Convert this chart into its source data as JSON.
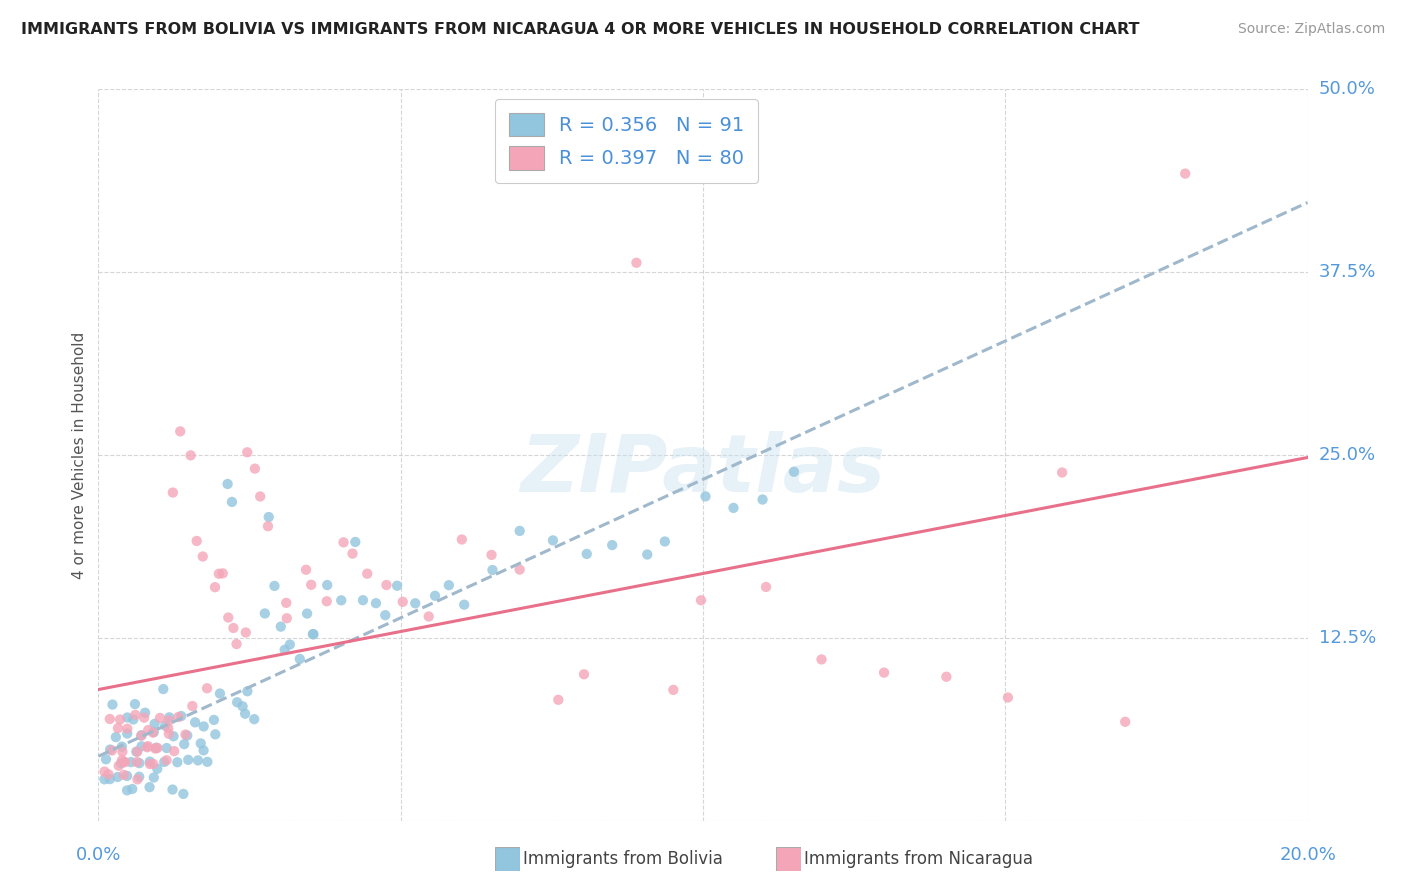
{
  "title": "IMMIGRANTS FROM BOLIVIA VS IMMIGRANTS FROM NICARAGUA 4 OR MORE VEHICLES IN HOUSEHOLD CORRELATION CHART",
  "source": "Source: ZipAtlas.com",
  "ylabel": "4 or more Vehicles in Household",
  "xlim": [
    0.0,
    0.2
  ],
  "ylim": [
    0.0,
    0.5
  ],
  "bolivia_R": 0.356,
  "bolivia_N": 91,
  "nicaragua_R": 0.397,
  "nicaragua_N": 80,
  "bolivia_color": "#92c5de",
  "nicaragua_color": "#f4a6b8",
  "bolivia_line_color": "#4a90d9",
  "nicaragua_line_color": "#e8708a",
  "dashed_line_color": "#a0b8cc",
  "legend_label_bolivia": "Immigrants from Bolivia",
  "legend_label_nicaragua": "Immigrants from Nicaragua",
  "bolivia_x": [
    0.001,
    0.002,
    0.002,
    0.003,
    0.003,
    0.004,
    0.004,
    0.005,
    0.005,
    0.006,
    0.006,
    0.007,
    0.007,
    0.007,
    0.008,
    0.008,
    0.009,
    0.009,
    0.01,
    0.01,
    0.01,
    0.011,
    0.011,
    0.012,
    0.012,
    0.013,
    0.013,
    0.014,
    0.014,
    0.015,
    0.015,
    0.016,
    0.016,
    0.017,
    0.017,
    0.018,
    0.019,
    0.019,
    0.02,
    0.02,
    0.021,
    0.022,
    0.023,
    0.024,
    0.025,
    0.025,
    0.026,
    0.027,
    0.028,
    0.03,
    0.03,
    0.031,
    0.032,
    0.033,
    0.034,
    0.035,
    0.036,
    0.038,
    0.04,
    0.042,
    0.044,
    0.046,
    0.048,
    0.05,
    0.052,
    0.055,
    0.058,
    0.06,
    0.065,
    0.07,
    0.075,
    0.08,
    0.085,
    0.09,
    0.095,
    0.1,
    0.105,
    0.11,
    0.115,
    0.001,
    0.002,
    0.003,
    0.004,
    0.005,
    0.006,
    0.007,
    0.008,
    0.009,
    0.01,
    0.012,
    0.014
  ],
  "bolivia_y": [
    0.04,
    0.05,
    0.08,
    0.04,
    0.06,
    0.05,
    0.07,
    0.04,
    0.06,
    0.05,
    0.07,
    0.04,
    0.06,
    0.08,
    0.05,
    0.07,
    0.04,
    0.06,
    0.05,
    0.07,
    0.09,
    0.04,
    0.06,
    0.05,
    0.07,
    0.04,
    0.06,
    0.05,
    0.07,
    0.04,
    0.06,
    0.05,
    0.07,
    0.04,
    0.06,
    0.05,
    0.07,
    0.04,
    0.06,
    0.09,
    0.23,
    0.22,
    0.08,
    0.08,
    0.07,
    0.09,
    0.07,
    0.14,
    0.21,
    0.16,
    0.13,
    0.12,
    0.12,
    0.11,
    0.14,
    0.13,
    0.13,
    0.16,
    0.15,
    0.19,
    0.15,
    0.15,
    0.14,
    0.16,
    0.15,
    0.15,
    0.16,
    0.15,
    0.17,
    0.2,
    0.19,
    0.18,
    0.19,
    0.18,
    0.19,
    0.22,
    0.21,
    0.22,
    0.24,
    0.03,
    0.03,
    0.03,
    0.02,
    0.03,
    0.02,
    0.03,
    0.02,
    0.03,
    0.03,
    0.02,
    0.02
  ],
  "nicaragua_x": [
    0.001,
    0.002,
    0.002,
    0.003,
    0.003,
    0.004,
    0.004,
    0.005,
    0.005,
    0.006,
    0.006,
    0.007,
    0.007,
    0.008,
    0.008,
    0.009,
    0.009,
    0.01,
    0.01,
    0.011,
    0.011,
    0.012,
    0.013,
    0.014,
    0.015,
    0.016,
    0.017,
    0.018,
    0.019,
    0.02,
    0.021,
    0.022,
    0.023,
    0.024,
    0.025,
    0.026,
    0.027,
    0.028,
    0.03,
    0.032,
    0.034,
    0.036,
    0.038,
    0.04,
    0.042,
    0.045,
    0.048,
    0.05,
    0.055,
    0.06,
    0.065,
    0.07,
    0.075,
    0.08,
    0.09,
    0.095,
    0.1,
    0.11,
    0.12,
    0.13,
    0.14,
    0.15,
    0.16,
    0.17,
    0.18,
    0.002,
    0.003,
    0.004,
    0.005,
    0.006,
    0.007,
    0.008,
    0.009,
    0.01,
    0.011,
    0.012,
    0.013,
    0.014,
    0.016,
    0.018
  ],
  "nicaragua_y": [
    0.04,
    0.05,
    0.07,
    0.04,
    0.06,
    0.05,
    0.07,
    0.04,
    0.06,
    0.05,
    0.07,
    0.04,
    0.06,
    0.05,
    0.07,
    0.04,
    0.06,
    0.05,
    0.07,
    0.04,
    0.06,
    0.05,
    0.22,
    0.27,
    0.25,
    0.19,
    0.18,
    0.17,
    0.16,
    0.17,
    0.14,
    0.13,
    0.12,
    0.13,
    0.25,
    0.24,
    0.22,
    0.2,
    0.14,
    0.15,
    0.17,
    0.16,
    0.15,
    0.19,
    0.18,
    0.17,
    0.16,
    0.15,
    0.14,
    0.19,
    0.18,
    0.17,
    0.08,
    0.1,
    0.38,
    0.09,
    0.15,
    0.16,
    0.11,
    0.1,
    0.1,
    0.08,
    0.24,
    0.07,
    0.44,
    0.03,
    0.04,
    0.03,
    0.04,
    0.03,
    0.05,
    0.04,
    0.06,
    0.05,
    0.07,
    0.06,
    0.07,
    0.06,
    0.08,
    0.09
  ]
}
